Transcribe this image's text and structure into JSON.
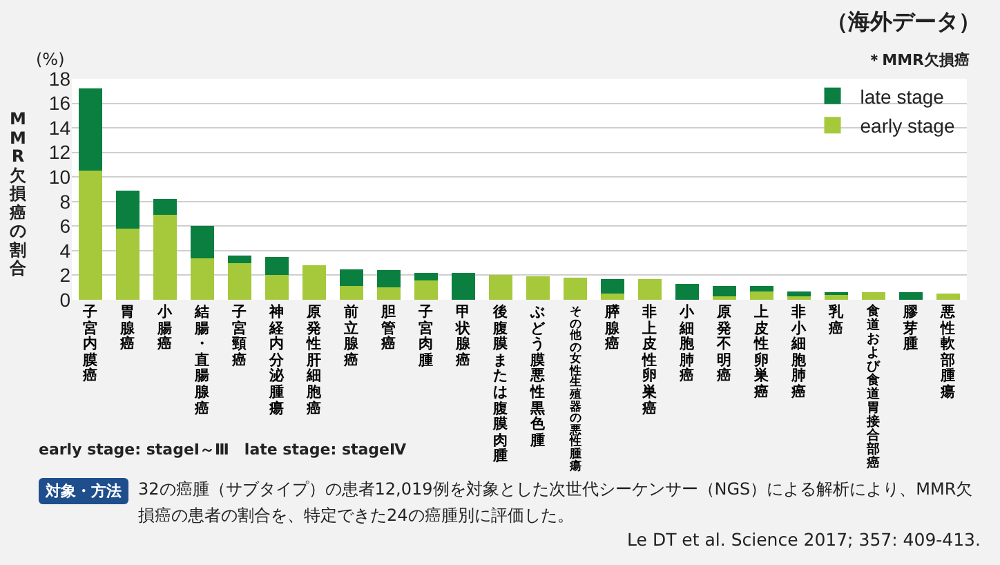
{
  "chart_data": {
    "type": "bar",
    "stacked": true,
    "title": "（海外データ）",
    "subtitle": "＊MMR欠損癌",
    "ylabel": "MMR欠損癌の割合",
    "categories": [
      "子宮内膜癌",
      "胃腺癌",
      "小腸癌",
      "結腸・直腸腺癌",
      "子宮頸癌",
      "神経内分泌腫瘍",
      "原発性肝細胞癌",
      "前立腺癌",
      "胆管癌",
      "子宮肉腫",
      "甲状腺癌",
      "後腹膜または腹膜肉腫",
      "ぶどう膜悪性黒色腫",
      "その他の女性生殖器の悪性腫瘍",
      "膵腺癌",
      "非上皮性卵巣癌",
      "小細胞肺癌",
      "原発不明癌",
      "上皮性卵巣癌",
      "非小細胞肺癌",
      "乳癌",
      "食道および食道胃接合部癌",
      "膠芽腫",
      "悪性軟部腫瘍"
    ],
    "series": [
      {
        "name": "early stage",
        "color": "#a5c93a",
        "values": [
          10.5,
          5.8,
          6.9,
          3.4,
          3.0,
          2.0,
          2.8,
          1.1,
          1.0,
          1.6,
          0,
          2.0,
          1.9,
          1.8,
          0.5,
          1.7,
          0,
          0.3,
          0.7,
          0.3,
          0.4,
          0.6,
          0,
          0.5
        ]
      },
      {
        "name": "late stage",
        "color": "#0a7f3f",
        "values": [
          6.7,
          3.1,
          1.3,
          2.6,
          0.6,
          1.5,
          0,
          1.4,
          1.4,
          0.6,
          2.2,
          0,
          0,
          0,
          1.2,
          0,
          1.3,
          0.8,
          0.4,
          0.4,
          0.2,
          0,
          0.6,
          0
        ]
      }
    ],
    "ylim": [
      0,
      18
    ],
    "yticks": [
      0,
      2,
      4,
      6,
      8,
      10,
      12,
      14,
      16,
      18
    ],
    "grid": "y",
    "legend": "top right",
    "annotations": [
      "(%)",
      "early stage: stageⅠ～Ⅲ　late stage: stageⅣ",
      "対象・方法",
      "32の癌腫（サブタイプ）の患者12,019例を対象とした次世代シーケンサー（NGS）による解析により、MMR欠損癌の患者の割合を、特定できた24の癌腫別に評価した。",
      "Le DT et al. Science 2017; 357: 409-413."
    ]
  }
}
